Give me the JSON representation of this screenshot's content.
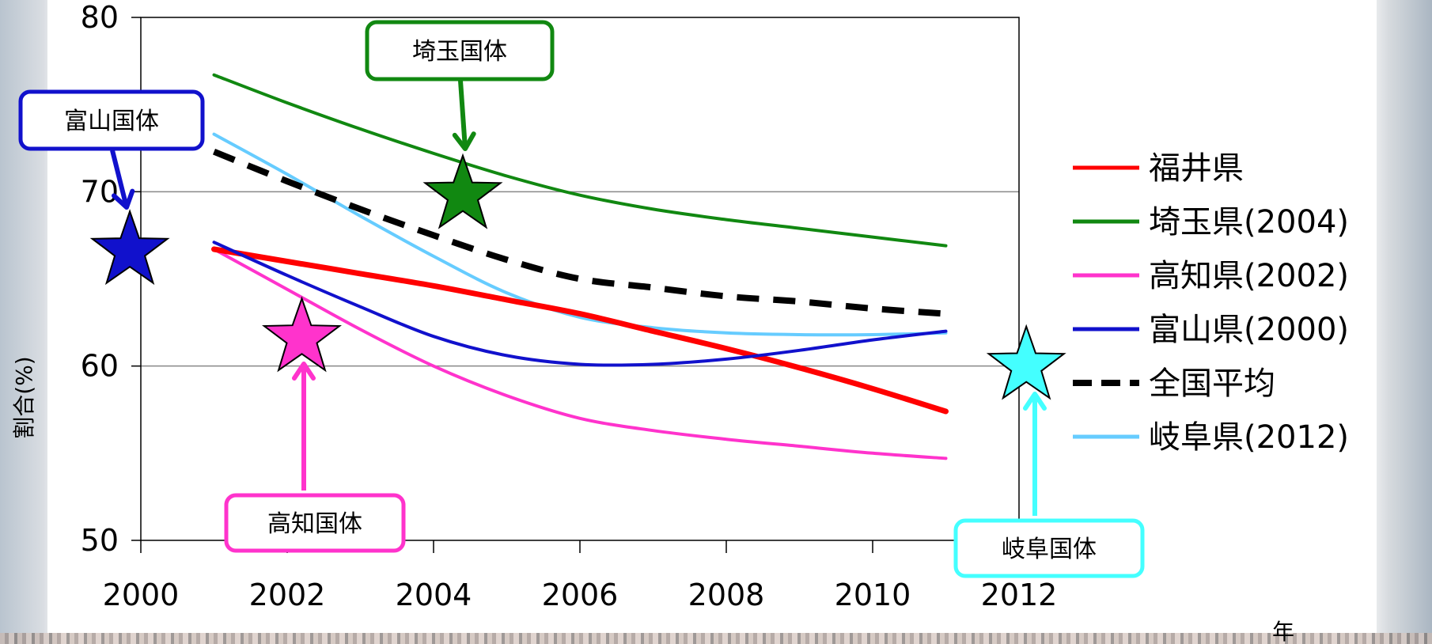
{
  "chart_data": {
    "type": "line",
    "xlabel": "年",
    "ylabel": "割合(%)",
    "xlim": [
      2000,
      2012
    ],
    "ylim": [
      50,
      80
    ],
    "xticks": [
      2000,
      2002,
      2004,
      2006,
      2008,
      2010,
      2012
    ],
    "yticks": [
      50,
      60,
      70,
      80
    ],
    "grid": "horizontal",
    "legend_position": "right",
    "x": [
      2001,
      2002,
      2003,
      2004,
      2005,
      2006,
      2007,
      2008,
      2009,
      2010,
      2011
    ],
    "series": [
      {
        "name": "福井県",
        "color": "#ff0000",
        "style": "solid",
        "width": 7,
        "values": [
          66.7,
          66.0,
          65.3,
          64.6,
          63.8,
          63.0,
          62.0,
          61.0,
          59.9,
          58.7,
          57.4
        ]
      },
      {
        "name": "埼玉県(2004)",
        "color": "#118811",
        "style": "solid",
        "width": 4,
        "values": [
          76.7,
          75.1,
          73.6,
          72.2,
          70.9,
          69.8,
          69.0,
          68.4,
          67.9,
          67.4,
          66.9
        ]
      },
      {
        "name": "高知県(2002)",
        "color": "#ff33cc",
        "style": "solid",
        "width": 4,
        "values": [
          66.7,
          64.4,
          62.1,
          60.0,
          58.3,
          57.0,
          56.3,
          55.8,
          55.4,
          55.0,
          54.7
        ]
      },
      {
        "name": "富山県(2000)",
        "color": "#1111cc",
        "style": "solid",
        "width": 4,
        "values": [
          67.1,
          65.2,
          63.4,
          61.7,
          60.6,
          60.1,
          60.1,
          60.4,
          60.9,
          61.5,
          62.0
        ]
      },
      {
        "name": "全国平均",
        "color": "#000000",
        "style": "dashed",
        "width": 8,
        "values": [
          72.3,
          70.6,
          69.0,
          67.5,
          66.1,
          65.0,
          64.5,
          64.0,
          63.7,
          63.3,
          63.0
        ]
      },
      {
        "name": "岐阜県(2012)",
        "color": "#66ccff",
        "style": "solid",
        "width": 4,
        "values": [
          73.3,
          71.0,
          68.6,
          66.3,
          64.2,
          62.8,
          62.2,
          61.9,
          61.8,
          61.8,
          61.9
        ]
      }
    ],
    "annotations": [
      {
        "text": "富山国体",
        "color": "#1111cc",
        "star": {
          "x": 1999.85,
          "y": 66.6
        }
      },
      {
        "text": "埼玉国体",
        "color": "#118811",
        "star": {
          "x": 2004.4,
          "y": 69.8
        }
      },
      {
        "text": "高知国体",
        "color": "#ff33cc",
        "star": {
          "x": 2002.2,
          "y": 61.6
        }
      },
      {
        "text": "岐阜国体",
        "color": "#44ffff",
        "star": {
          "x": 2012.1,
          "y": 60.0
        }
      }
    ]
  }
}
